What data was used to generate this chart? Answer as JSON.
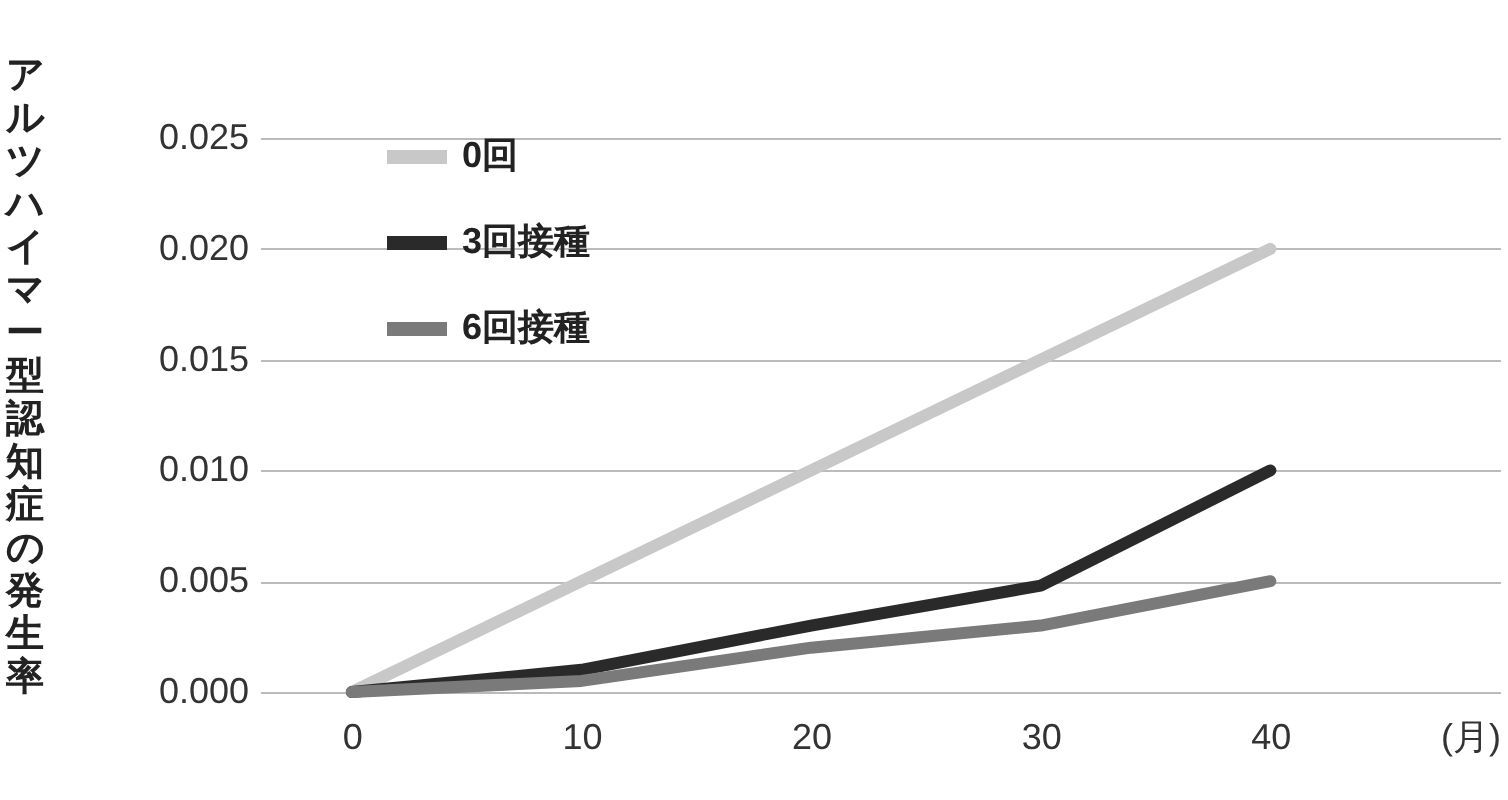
{
  "chart_data": {
    "type": "line",
    "xlabel": "(月)",
    "ylabel": "アルツハイマー型認知症の発生率",
    "x": [
      0,
      10,
      20,
      30,
      40
    ],
    "xlim": [
      -4,
      50
    ],
    "xticks": [
      0,
      10,
      20,
      30,
      40
    ],
    "ylim": [
      0,
      0.025
    ],
    "yticks": [
      {
        "value": 0,
        "label": "0.000"
      },
      {
        "value": 0.005,
        "label": "0.005"
      },
      {
        "value": 0.01,
        "label": "0.010"
      },
      {
        "value": 0.015,
        "label": "0.015"
      },
      {
        "value": 0.02,
        "label": "0.020"
      },
      {
        "value": 0.025,
        "label": "0.025"
      }
    ],
    "series": [
      {
        "name": "0回",
        "color": "#c8c8c8",
        "values": [
          0,
          0.005,
          0.01,
          0.015,
          0.02
        ]
      },
      {
        "name": "3回接種",
        "color": "#2a2a2a",
        "values": [
          0,
          0.001,
          0.003,
          0.0048,
          0.01
        ]
      },
      {
        "name": "6回接種",
        "color": "#7a7a7a",
        "values": [
          0,
          0.0005,
          0.002,
          0.003,
          0.005
        ]
      }
    ],
    "grid": "y",
    "legend": "top left",
    "line_style": "solid",
    "marker": "none"
  }
}
